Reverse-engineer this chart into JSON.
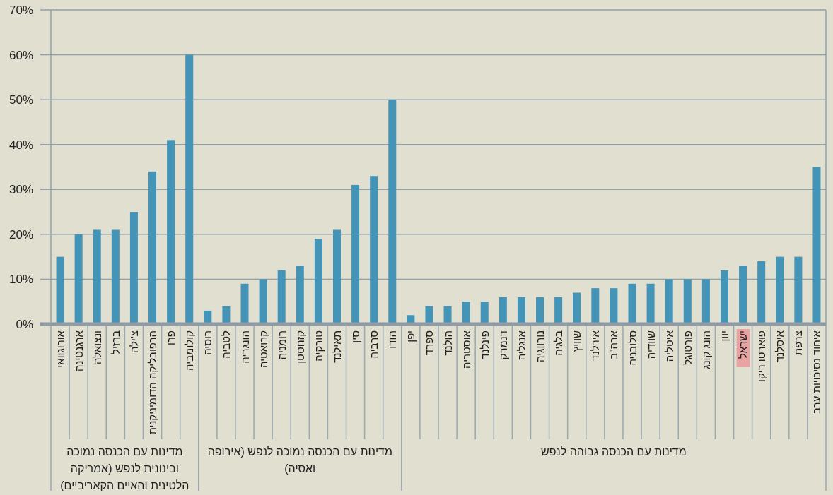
{
  "chart_data": {
    "type": "bar",
    "categories": [
      "אורוגוואי",
      "ארגנטינה",
      "ונצואלה",
      "ברזיל",
      "צ'ילה",
      "הרפובליקה הדומיניקנית",
      "פרו",
      "קולומביה",
      "רוסיה",
      "לטביה",
      "הונגריה",
      "קרואטיה",
      "רומניה",
      "קזחסטן",
      "טורקיה",
      "תאילנד",
      "סין",
      "סרביה",
      "הודו",
      "יפן",
      "ספרד",
      "הולנד",
      "אוסטריה",
      "פינלנד",
      "דנמרק",
      "אנגליה",
      "נורווגיה",
      "בלגיה",
      "שוויץ",
      "אירלנד",
      "ארה\"ב",
      "סלובניה",
      "שוודיה",
      "איטליה",
      "פורטוגל",
      "הונג קונג",
      "יוון",
      "ישראל",
      "פוארטו ריקו",
      "איסלנד",
      "צרפת",
      "איחוד נסיכויות ערב"
    ],
    "values": [
      15,
      20,
      21,
      21,
      25,
      34,
      41,
      60,
      3,
      4,
      9,
      10,
      12,
      13,
      19,
      21,
      31,
      33,
      50,
      2,
      4,
      4,
      5,
      5,
      6,
      6,
      6,
      6,
      7,
      8,
      8,
      9,
      9,
      10,
      10,
      10,
      12,
      13,
      14,
      15,
      15,
      35
    ],
    "color": "#4494b8",
    "ylim": [
      0,
      70
    ],
    "yticks": [
      {
        "value": 0,
        "label": "0%"
      },
      {
        "value": 10,
        "label": "10%"
      },
      {
        "value": 20,
        "label": "20%"
      },
      {
        "value": 30,
        "label": "30%"
      },
      {
        "value": 40,
        "label": "40%"
      },
      {
        "value": 50,
        "label": "50%"
      },
      {
        "value": 60,
        "label": "60%"
      },
      {
        "value": 70,
        "label": "70%"
      }
    ],
    "grid": "y",
    "annotations": [
      "מדינות עם הכנסה נמוכה ובינונית לנפש (אמריקה הלטינית והאיים הקאריביים)",
      "מדינות עם הכנסה נמוכה לנפש (אירופה ואסיה)",
      "מדינות עם הכנסה גבוהה לנפש"
    ]
  }
}
